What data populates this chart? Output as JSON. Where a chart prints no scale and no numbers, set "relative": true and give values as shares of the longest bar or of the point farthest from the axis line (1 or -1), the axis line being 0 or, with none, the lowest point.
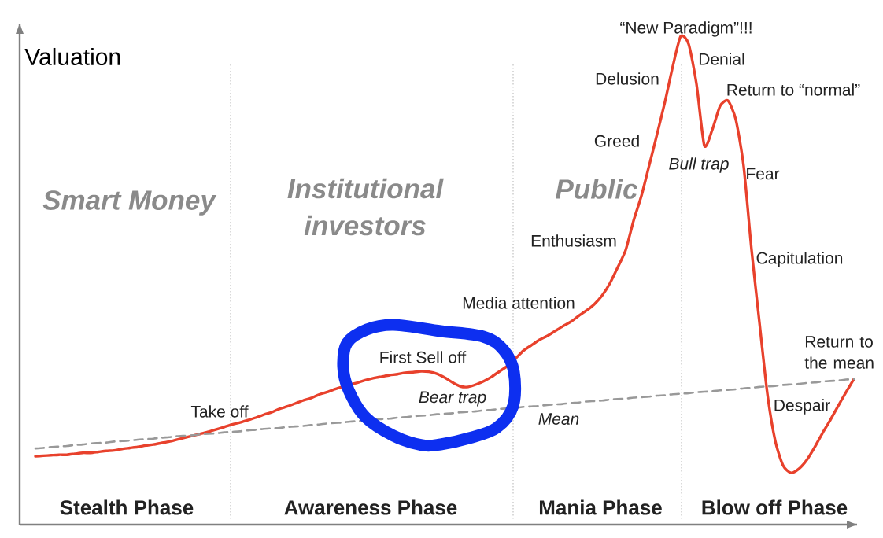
{
  "chart_data": {
    "type": "line",
    "relative": true,
    "ylabel": "Valuation",
    "categories": [
      null,
      null,
      null,
      null,
      null,
      null,
      null,
      null,
      null,
      null,
      null,
      null,
      null,
      null,
      null,
      null,
      null,
      null,
      null,
      null,
      null,
      null,
      null,
      null,
      null,
      null,
      null,
      null,
      null,
      null,
      null,
      null,
      null,
      null,
      null,
      null,
      null,
      null,
      null,
      null,
      null,
      null,
      null,
      null,
      null,
      null,
      null,
      null,
      null,
      null,
      null,
      null,
      null,
      null,
      null,
      null,
      null,
      null,
      null,
      null,
      null,
      null,
      null,
      null,
      null,
      null,
      null,
      null,
      null,
      null,
      null,
      null,
      null,
      null,
      null,
      null,
      null,
      null,
      null,
      null,
      null,
      null,
      null,
      null,
      null,
      null,
      null,
      null,
      null,
      null,
      null,
      null,
      null,
      null,
      null,
      null,
      null,
      null,
      null,
      null,
      null,
      null,
      null,
      null,
      null
    ],
    "series": [
      {
        "color": "#e8412c",
        "values": [
          0.14,
          0.141,
          0.142,
          0.143,
          0.143,
          0.145,
          0.147,
          0.147,
          0.149,
          0.151,
          0.152,
          0.155,
          0.157,
          0.159,
          0.162,
          0.164,
          0.167,
          0.17,
          0.174,
          0.178,
          0.182,
          0.186,
          0.19,
          0.195,
          0.2,
          0.205,
          0.209,
          0.214,
          0.219,
          0.225,
          0.23,
          0.237,
          0.242,
          0.248,
          0.254,
          0.259,
          0.266,
          0.271,
          0.277,
          0.282,
          0.287,
          0.291,
          0.296,
          0.3,
          0.303,
          0.306,
          0.308,
          0.311,
          0.312,
          0.314,
          0.313,
          0.309,
          0.301,
          0.291,
          0.283,
          0.282,
          0.287,
          0.294,
          0.303,
          0.314,
          0.325,
          0.34,
          0.356,
          0.367,
          0.378,
          0.386,
          0.396,
          0.406,
          0.415,
          0.427,
          0.438,
          0.451,
          0.469,
          0.494,
          0.527,
          0.562,
          0.622,
          0.673,
          0.736,
          0.8,
          0.866,
          0.939,
          1,
          0.984,
          0.902,
          0.776,
          0.808,
          0.857,
          0.868,
          0.829,
          0.733,
          0.562,
          0.414,
          0.269,
          0.172,
          0.121,
          0.106,
          0.114,
          0.132,
          0.158,
          0.187,
          0.214,
          0.243,
          0.271,
          0.298
        ]
      },
      {
        "name": "Mean",
        "color": "#999999",
        "line_style": "dashed",
        "values": [
          0.156,
          0.157,
          0.159,
          0.16,
          0.161,
          0.163,
          0.164,
          0.166,
          0.167,
          0.168,
          0.17,
          0.171,
          0.172,
          0.174,
          0.175,
          0.176,
          0.178,
          0.179,
          0.181,
          0.182,
          0.183,
          0.185,
          0.186,
          0.187,
          0.189,
          0.19,
          0.191,
          0.193,
          0.194,
          0.196,
          0.197,
          0.198,
          0.2,
          0.201,
          0.202,
          0.204,
          0.205,
          0.207,
          0.208,
          0.209,
          0.211,
          0.212,
          0.213,
          0.215,
          0.216,
          0.217,
          0.219,
          0.22,
          0.222,
          0.223,
          0.224,
          0.226,
          0.227,
          0.228,
          0.23,
          0.231,
          0.232,
          0.234,
          0.235,
          0.237,
          0.238,
          0.239,
          0.241,
          0.242,
          0.243,
          0.245,
          0.246,
          0.247,
          0.249,
          0.25,
          0.252,
          0.253,
          0.254,
          0.256,
          0.257,
          0.258,
          0.26,
          0.261,
          0.262,
          0.264,
          0.265,
          0.267,
          0.268,
          0.269,
          0.271,
          0.272,
          0.273,
          0.275,
          0.276,
          0.277,
          0.279,
          0.28,
          0.282,
          0.283,
          0.284,
          0.286,
          0.287,
          0.288,
          0.29,
          0.291,
          0.293,
          0.294,
          0.295,
          0.297,
          0.298
        ]
      }
    ],
    "annotations": [
      "Smart Money",
      "Institutional investors",
      "Public",
      "“New Paradigm”!!!",
      "Delusion",
      "Denial",
      "Return to “normal”",
      "Greed",
      "Bull trap",
      "Fear",
      "Enthusiasm",
      "Capitulation",
      "Media attention",
      "First Sell off",
      "Bear trap",
      "Take off",
      "Return to the mean",
      "Despair",
      "Stealth Phase",
      "Awareness Phase",
      "Mania Phase",
      "Blow off Phase"
    ]
  }
}
